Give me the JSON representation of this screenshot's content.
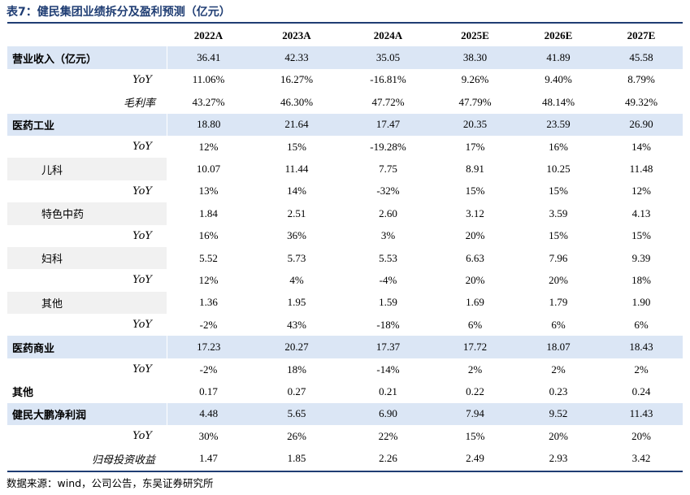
{
  "title": "表7：健民集团业绩拆分及盈利预测（亿元）",
  "columns": [
    "2022A",
    "2023A",
    "2024A",
    "2025E",
    "2026E",
    "2027E"
  ],
  "rows": [
    {
      "label": "营业收入（亿元）",
      "kind": "bold",
      "highlight": true,
      "values": [
        "36.41",
        "42.33",
        "35.05",
        "38.30",
        "41.89",
        "45.58"
      ]
    },
    {
      "label": "YoY",
      "kind": "yoy",
      "values": [
        "11.06%",
        "16.27%",
        "-16.81%",
        "9.26%",
        "9.40%",
        "8.79%"
      ]
    },
    {
      "label": "毛利率",
      "kind": "it",
      "values": [
        "43.27%",
        "46.30%",
        "47.72%",
        "47.79%",
        "48.14%",
        "49.32%"
      ]
    },
    {
      "label": "医药工业",
      "kind": "bold",
      "highlight": true,
      "values": [
        "18.80",
        "21.64",
        "17.47",
        "20.35",
        "23.59",
        "26.90"
      ]
    },
    {
      "label": "YoY",
      "kind": "yoy",
      "values": [
        "12%",
        "15%",
        "-19.28%",
        "17%",
        "16%",
        "14%"
      ]
    },
    {
      "label": "儿科",
      "kind": "sub",
      "values": [
        "10.07",
        "11.44",
        "7.75",
        "8.91",
        "10.25",
        "11.48"
      ]
    },
    {
      "label": "YoY",
      "kind": "yoy",
      "values": [
        "13%",
        "14%",
        "-32%",
        "15%",
        "15%",
        "12%"
      ]
    },
    {
      "label": "特色中药",
      "kind": "sub",
      "values": [
        "1.84",
        "2.51",
        "2.60",
        "3.12",
        "3.59",
        "4.13"
      ]
    },
    {
      "label": "YoY",
      "kind": "yoy",
      "values": [
        "16%",
        "36%",
        "3%",
        "20%",
        "15%",
        "15%"
      ]
    },
    {
      "label": "妇科",
      "kind": "sub",
      "values": [
        "5.52",
        "5.73",
        "5.53",
        "6.63",
        "7.96",
        "9.39"
      ]
    },
    {
      "label": "YoY",
      "kind": "yoy",
      "values": [
        "12%",
        "4%",
        "-4%",
        "20%",
        "20%",
        "18%"
      ]
    },
    {
      "label": "其他",
      "kind": "sub",
      "values": [
        "1.36",
        "1.95",
        "1.59",
        "1.69",
        "1.79",
        "1.90"
      ]
    },
    {
      "label": "YoY",
      "kind": "yoy",
      "values": [
        "-2%",
        "43%",
        "-18%",
        "6%",
        "6%",
        "6%"
      ]
    },
    {
      "label": "医药商业",
      "kind": "bold",
      "highlight": true,
      "values": [
        "17.23",
        "20.27",
        "17.37",
        "17.72",
        "18.07",
        "18.43"
      ]
    },
    {
      "label": "YoY",
      "kind": "yoy",
      "values": [
        "-2%",
        "18%",
        "-14%",
        "2%",
        "2%",
        "2%"
      ]
    },
    {
      "label": "其他",
      "kind": "bold",
      "values": [
        "0.17",
        "0.27",
        "0.21",
        "0.22",
        "0.23",
        "0.24"
      ]
    },
    {
      "label": "健民大鹏净利润",
      "kind": "bold",
      "highlight": true,
      "values": [
        "4.48",
        "5.65",
        "6.90",
        "7.94",
        "9.52",
        "11.43"
      ]
    },
    {
      "label": "YoY",
      "kind": "yoy",
      "values": [
        "30%",
        "26%",
        "22%",
        "15%",
        "20%",
        "20%"
      ]
    },
    {
      "label": "归母投资收益",
      "kind": "it",
      "values": [
        "1.47",
        "1.85",
        "2.26",
        "2.49",
        "2.93",
        "3.42"
      ]
    }
  ],
  "source": "数据来源：wind，公司公告，东吴证券研究所",
  "colors": {
    "title": "#1f3d73",
    "rule": "#1f3d73",
    "highlight_row": "#dbe6f5"
  }
}
